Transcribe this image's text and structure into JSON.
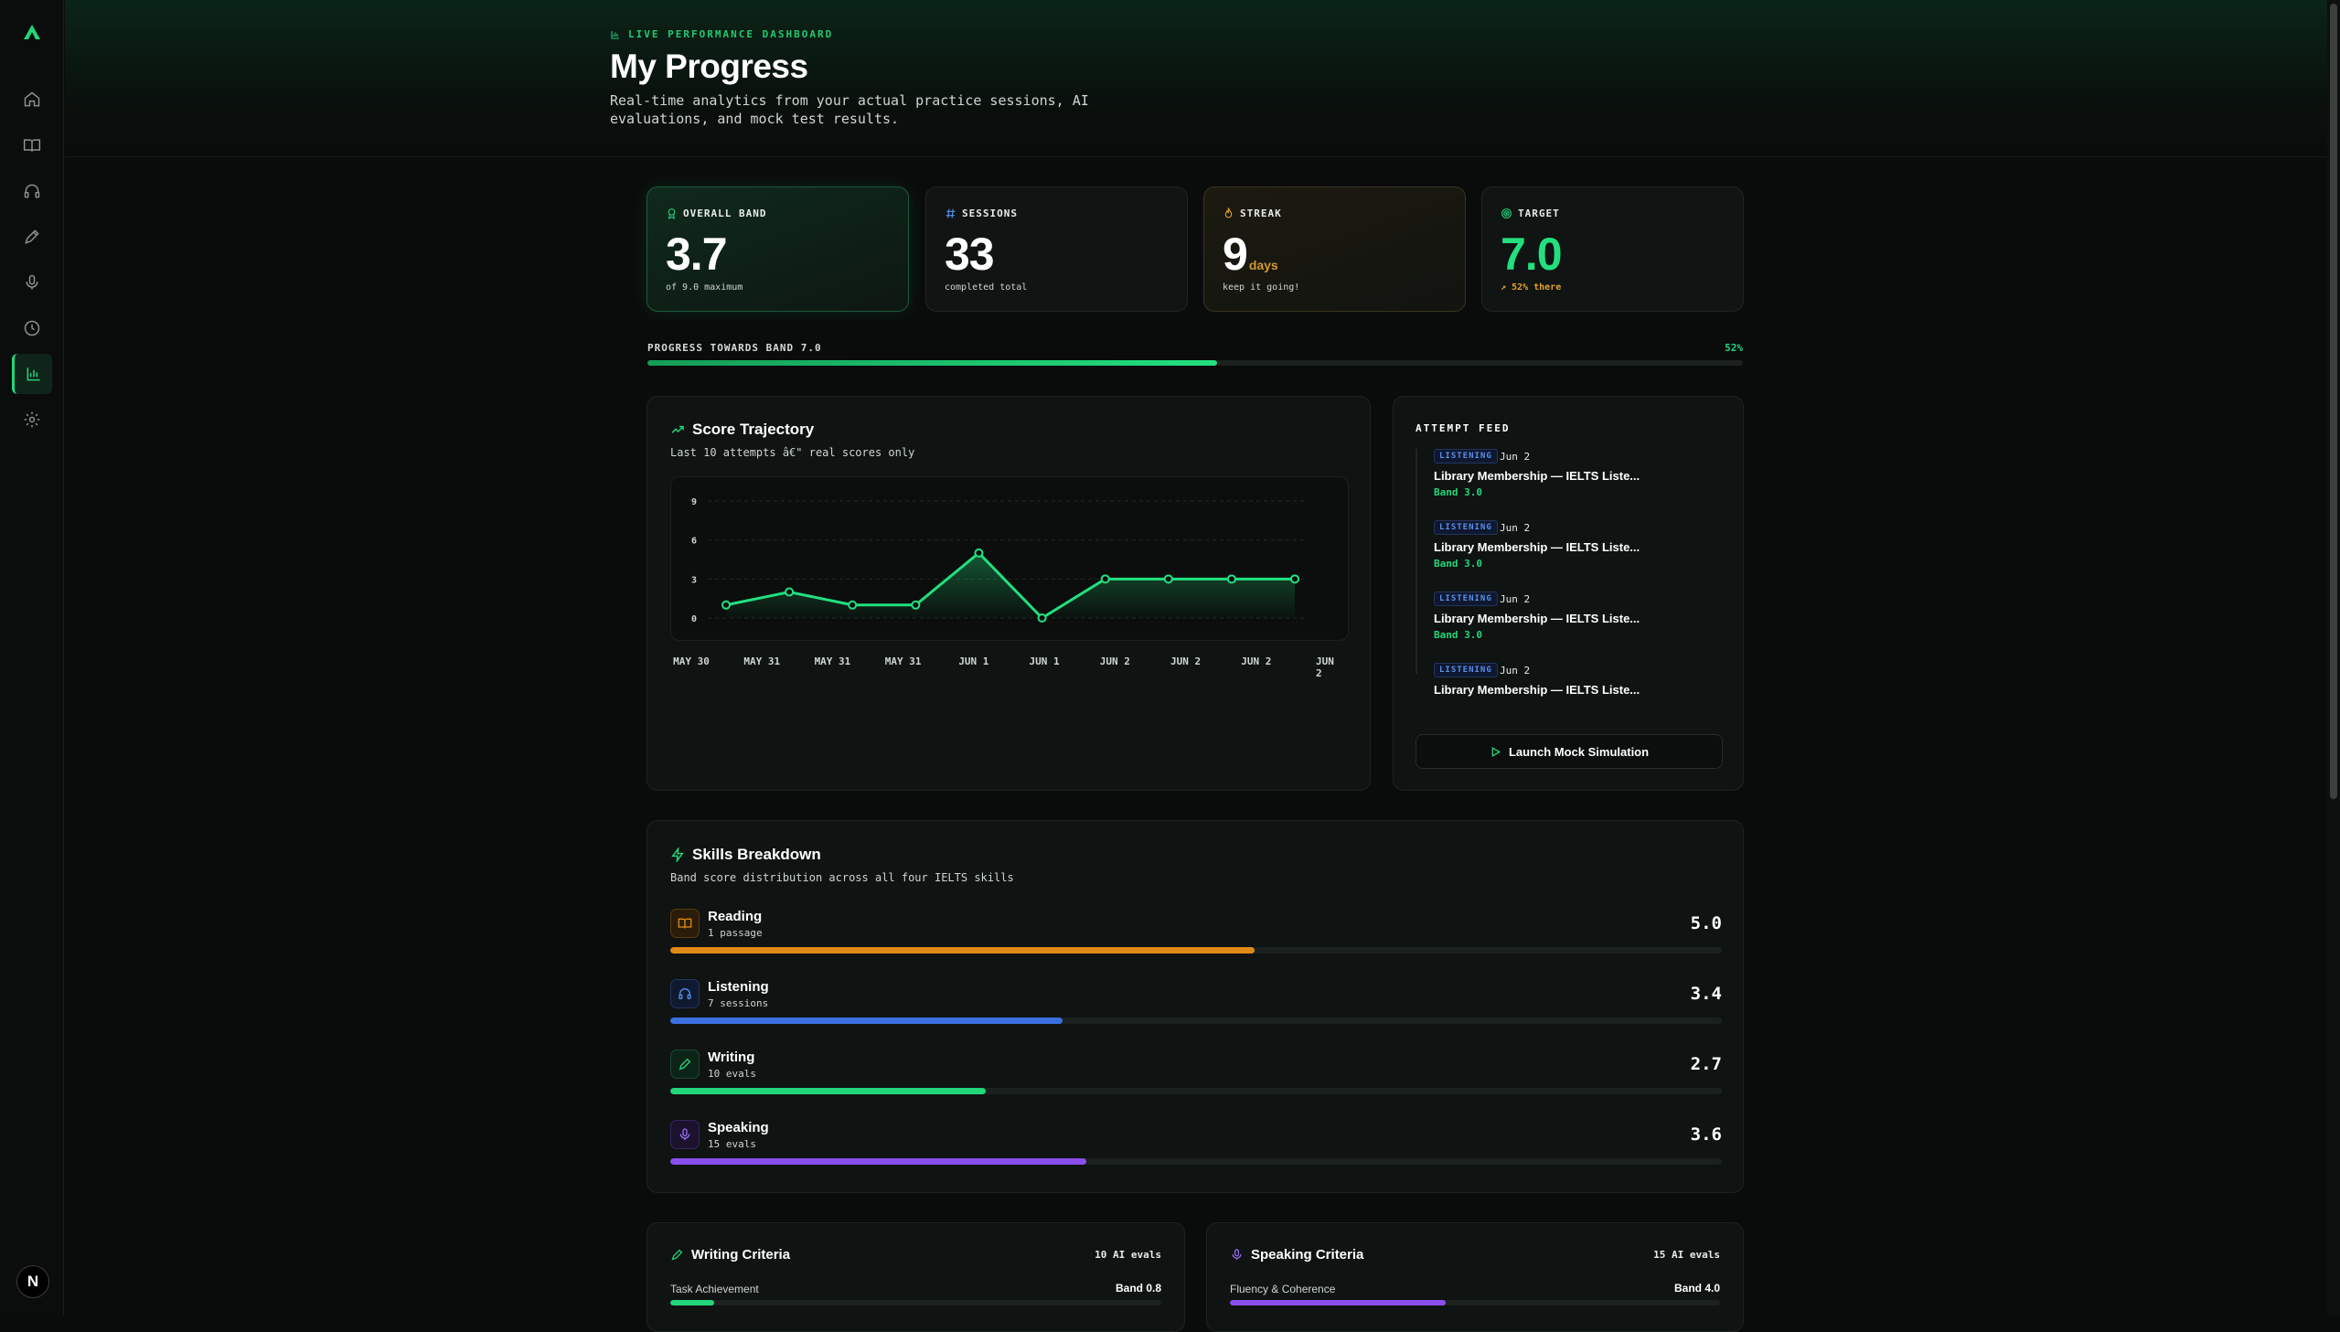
{
  "header": {
    "kicker": "LIVE PERFORMANCE DASHBOARD",
    "title": "My Progress",
    "subtitle": "Real-time analytics from your actual practice sessions, AI evaluations, and mock test results."
  },
  "sidebar": {
    "items": [
      {
        "icon": "home-icon",
        "active": false
      },
      {
        "icon": "book-icon",
        "active": false
      },
      {
        "icon": "headphones-icon",
        "active": false
      },
      {
        "icon": "pen-icon",
        "active": false
      },
      {
        "icon": "microphone-icon",
        "active": false
      },
      {
        "icon": "clock-icon",
        "active": false
      },
      {
        "icon": "bar-chart-icon",
        "active": true
      },
      {
        "icon": "gear-icon",
        "active": false
      }
    ],
    "avatar_letter": "N"
  },
  "stats": {
    "band": {
      "label": "OVERALL BAND",
      "value": "3.7",
      "note": "of 9.0 maximum"
    },
    "sessions": {
      "label": "SESSIONS",
      "value": "33",
      "note": "completed total"
    },
    "streak": {
      "label": "STREAK",
      "value": "9",
      "unit": "days",
      "note": "keep it going!"
    },
    "target": {
      "label": "TARGET",
      "value": "7.0",
      "note": "↗ 52% there"
    }
  },
  "progress": {
    "label": "PROGRESS TOWARDS BAND 7.0",
    "percent_label": "52%",
    "percent": 52
  },
  "trajectory": {
    "title": "Score Trajectory",
    "subtitle": "Last 10 attempts â€\" real scores only"
  },
  "chart_data": {
    "type": "area",
    "categories": [
      "MAY 30",
      "MAY 31",
      "MAY 31",
      "MAY 31",
      "JUN 1",
      "JUN 1",
      "JUN 2",
      "JUN 2",
      "JUN 2",
      "JUN 2"
    ],
    "values": [
      1.0,
      2.0,
      1.0,
      1.0,
      5.0,
      0.0,
      3.0,
      3.0,
      3.0,
      3.0
    ],
    "y_ticks": [
      "9",
      "6",
      "3",
      "0"
    ],
    "ylim": [
      0,
      9
    ],
    "grid": true,
    "color": "#22e07f"
  },
  "feed": {
    "title": "ATTEMPT FEED",
    "items": [
      {
        "tag": "LISTENING",
        "date": "Jun 2",
        "name": "Library Membership — IELTS Liste...",
        "band": "Band 3.0"
      },
      {
        "tag": "LISTENING",
        "date": "Jun 2",
        "name": "Library Membership — IELTS Liste...",
        "band": "Band 3.0"
      },
      {
        "tag": "LISTENING",
        "date": "Jun 2",
        "name": "Library Membership — IELTS Liste...",
        "band": "Band 3.0"
      },
      {
        "tag": "LISTENING",
        "date": "Jun 2",
        "name": "Library Membership — IELTS Liste...",
        "band": ""
      }
    ],
    "launch_label": "Launch Mock Simulation"
  },
  "skills": {
    "title": "Skills Breakdown",
    "subtitle": "Band score distribution across all four IELTS skills",
    "items": [
      {
        "name": "Reading",
        "count": "1 passage",
        "score": "5.0",
        "fraction": 0.556,
        "color": "#e08a16",
        "icon": "book-icon"
      },
      {
        "name": "Listening",
        "count": "7 sessions",
        "score": "3.4",
        "fraction": 0.373,
        "color": "#3b6fe0",
        "icon": "headphones-icon"
      },
      {
        "name": "Writing",
        "count": "10 evals",
        "score": "2.7",
        "fraction": 0.3,
        "color": "#22d67b",
        "icon": "pen-icon"
      },
      {
        "name": "Speaking",
        "count": "15 evals",
        "score": "3.6",
        "fraction": 0.396,
        "color": "#8b4ff0",
        "icon": "microphone-icon"
      }
    ]
  },
  "criteria": {
    "writing": {
      "title": "Writing Criteria",
      "count": "10 AI evals",
      "row_label": "Task Achievement",
      "row_band": "Band 0.8",
      "fraction": 0.09,
      "color": "#22d67b"
    },
    "speaking": {
      "title": "Speaking Criteria",
      "count": "15 AI evals",
      "row_label": "Fluency & Coherence",
      "row_band": "Band 4.0",
      "fraction": 0.44,
      "color": "#8b4ff0"
    }
  }
}
